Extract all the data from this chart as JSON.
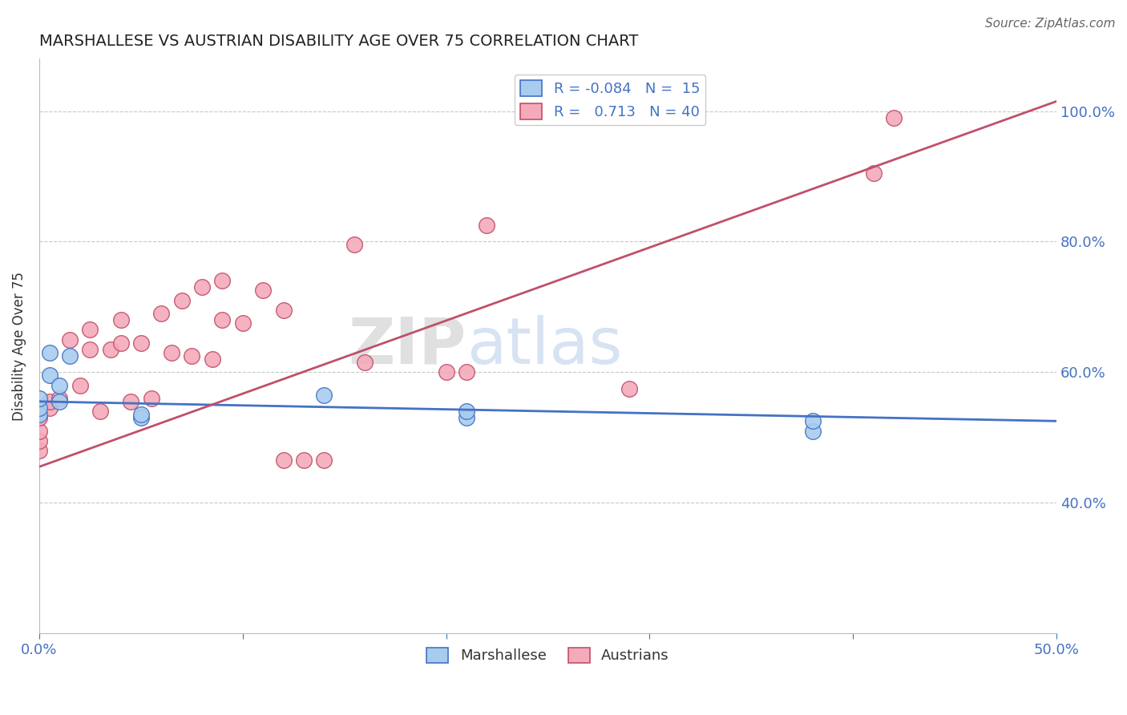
{
  "title": "MARSHALLESE VS AUSTRIAN DISABILITY AGE OVER 75 CORRELATION CHART",
  "source": "Source: ZipAtlas.com",
  "ylabel_label": "Disability Age Over 75",
  "x_min": 0.0,
  "x_max": 0.5,
  "y_min": 0.2,
  "y_max": 1.08,
  "x_ticks": [
    0.0,
    0.1,
    0.2,
    0.3,
    0.4,
    0.5
  ],
  "x_tick_labels": [
    "0.0%",
    "",
    "",
    "",
    "",
    "50.0%"
  ],
  "y_ticks": [
    0.4,
    0.6,
    0.8,
    1.0
  ],
  "y_tick_labels": [
    "40.0%",
    "60.0%",
    "80.0%",
    "100.0%"
  ],
  "marshallese_R": "-0.084",
  "marshallese_N": "15",
  "austrians_R": "0.713",
  "austrians_N": "40",
  "marshallese_color": "#A8CCEE",
  "austrians_color": "#F4AABB",
  "marshallese_line_color": "#4472C4",
  "austrians_line_color": "#C0506A",
  "legend_label_marshallese": "Marshallese",
  "legend_label_austrians": "Austrians",
  "watermark_zip": "ZIP",
  "watermark_atlas": "atlas",
  "marshallese_x": [
    0.0,
    0.0,
    0.0,
    0.005,
    0.005,
    0.01,
    0.01,
    0.015,
    0.05,
    0.05,
    0.14,
    0.21,
    0.21,
    0.38,
    0.38
  ],
  "marshallese_y": [
    0.535,
    0.545,
    0.56,
    0.595,
    0.63,
    0.555,
    0.58,
    0.625,
    0.53,
    0.535,
    0.565,
    0.53,
    0.54,
    0.51,
    0.525
  ],
  "austrians_x": [
    0.0,
    0.0,
    0.0,
    0.0,
    0.005,
    0.005,
    0.01,
    0.015,
    0.02,
    0.025,
    0.025,
    0.03,
    0.035,
    0.04,
    0.04,
    0.045,
    0.05,
    0.055,
    0.06,
    0.065,
    0.07,
    0.075,
    0.08,
    0.085,
    0.09,
    0.09,
    0.1,
    0.11,
    0.12,
    0.12,
    0.13,
    0.14,
    0.155,
    0.16,
    0.2,
    0.21,
    0.22,
    0.29,
    0.41,
    0.42
  ],
  "austrians_y": [
    0.48,
    0.495,
    0.51,
    0.53,
    0.545,
    0.555,
    0.56,
    0.65,
    0.58,
    0.635,
    0.665,
    0.54,
    0.635,
    0.645,
    0.68,
    0.555,
    0.645,
    0.56,
    0.69,
    0.63,
    0.71,
    0.625,
    0.73,
    0.62,
    0.74,
    0.68,
    0.675,
    0.725,
    0.465,
    0.695,
    0.465,
    0.465,
    0.795,
    0.615,
    0.6,
    0.6,
    0.825,
    0.575,
    0.905,
    0.99
  ],
  "marshallese_line_x0": 0.0,
  "marshallese_line_x1": 0.5,
  "marshallese_line_y0": 0.555,
  "marshallese_line_y1": 0.525,
  "austrians_line_x0": 0.0,
  "austrians_line_x1": 0.5,
  "austrians_line_y0": 0.455,
  "austrians_line_y1": 1.015
}
